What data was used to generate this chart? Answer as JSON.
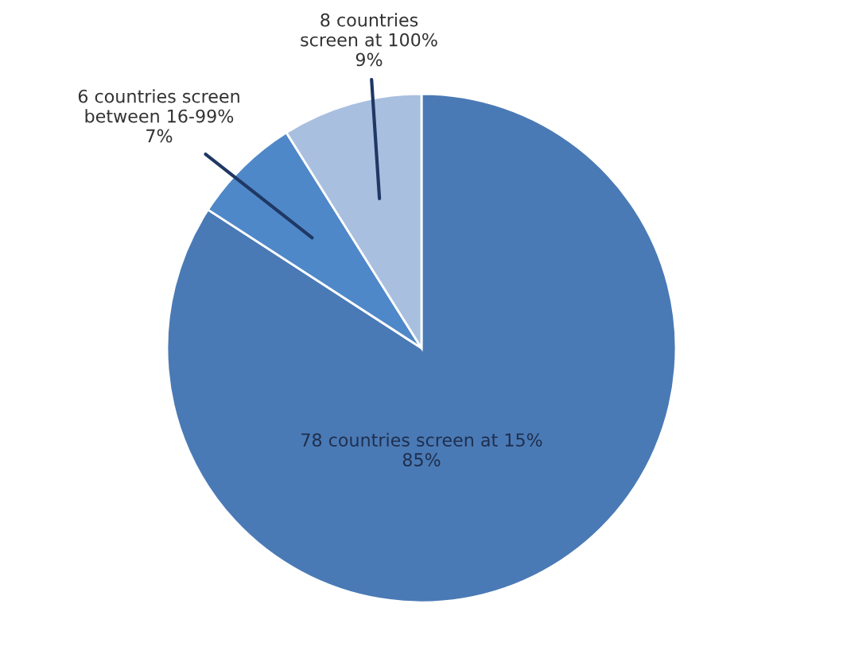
{
  "chart_data": {
    "type": "pie",
    "categories": [
      "78 countries screen at 15%",
      "6 countries screen\nbetween 16-99%",
      "8 countries\nscreen at 100%"
    ],
    "values": [
      85,
      7,
      9
    ],
    "value_labels": [
      "85%",
      "7%",
      "9%"
    ],
    "colors": [
      "#4a7ab5",
      "#4f88c8",
      "#a9bfdf"
    ],
    "legend": false
  }
}
